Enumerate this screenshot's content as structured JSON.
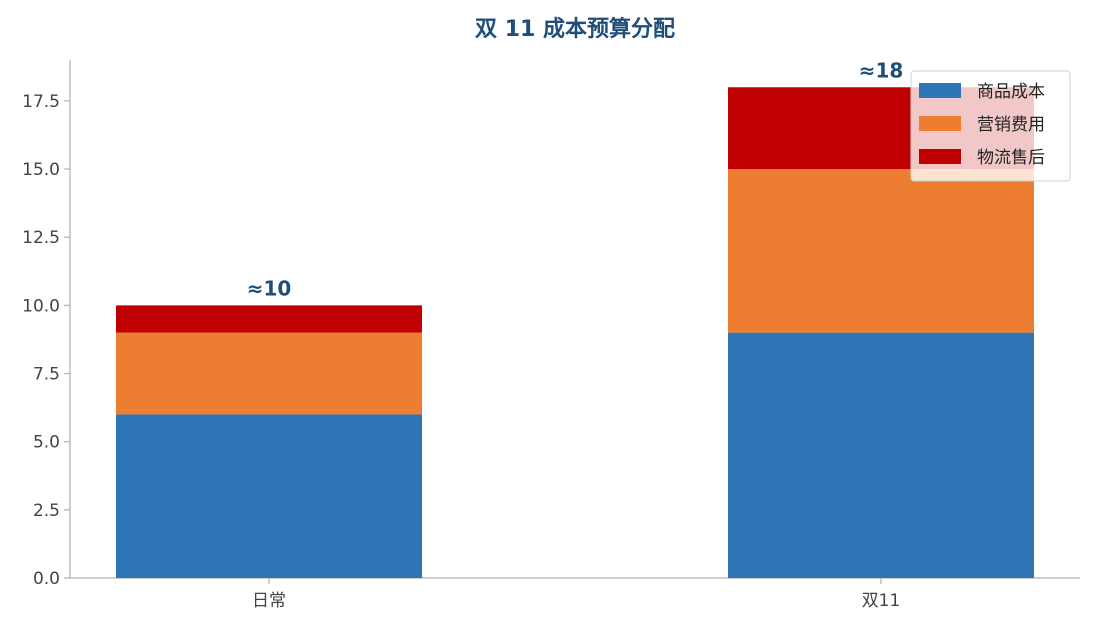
{
  "chart_data": {
    "type": "bar",
    "stacked": true,
    "title": "双 11 成本预算分配",
    "xlabel": "",
    "ylabel": "",
    "categories": [
      "日常",
      "双11"
    ],
    "series": [
      {
        "name": "商品成本",
        "values": [
          6,
          9
        ],
        "color": "#2e75b6"
      },
      {
        "name": "营销费用",
        "values": [
          3,
          6
        ],
        "color": "#ed7d31"
      },
      {
        "name": "物流售后",
        "values": [
          1,
          3
        ],
        "color": "#c00000"
      }
    ],
    "totals": [
      {
        "text": "≈10",
        "value": 10
      },
      {
        "text": "≈18",
        "value": 18
      }
    ],
    "ylim": [
      0,
      19
    ],
    "yticks": [
      "0.0",
      "2.5",
      "5.0",
      "7.5",
      "10.0",
      "12.5",
      "15.0",
      "17.5"
    ],
    "ytick_values": [
      0,
      2.5,
      5,
      7.5,
      10,
      12.5,
      15,
      17.5
    ],
    "grid": false,
    "legend_position": "top-right",
    "title_color": "#1f4e79",
    "total_label_color": "#1f4e79",
    "axis_color": "#b0b0b0"
  }
}
